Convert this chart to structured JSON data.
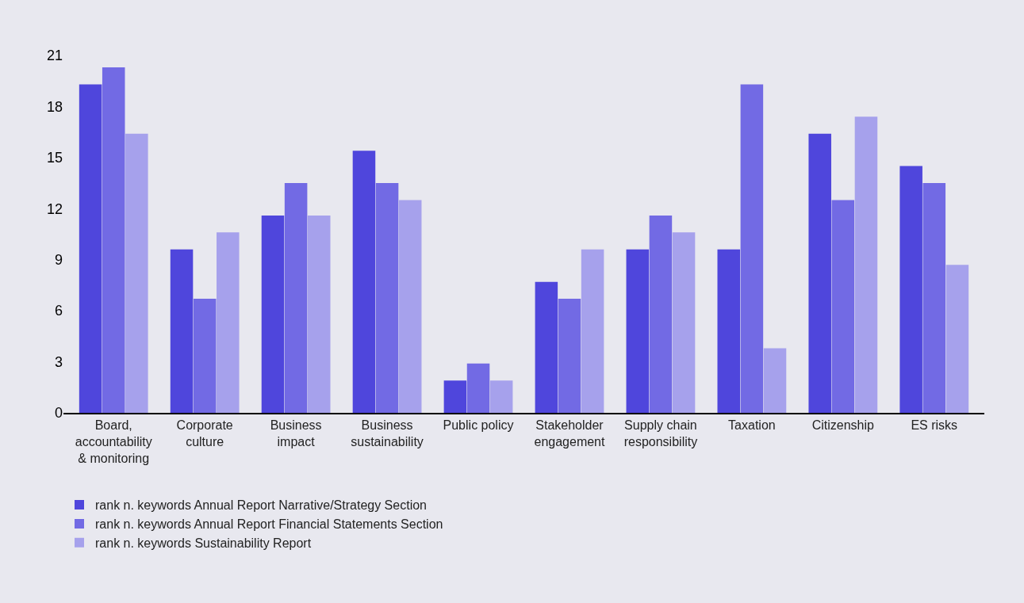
{
  "chart_data": {
    "type": "bar",
    "categories": [
      "Board, accountability & monitoring",
      "Corporate culture",
      "Business impact",
      "Business sustainability",
      "Public policy",
      "Stakeholder engagement",
      "Supply chain responsibility",
      "Taxation",
      "Citizenship",
      "ES risks"
    ],
    "series": [
      {
        "name": "rank n. keywords Annual Report Narrative/Strategy Section",
        "color": "#4f46dc",
        "values": [
          19.3,
          9.6,
          11.6,
          15.4,
          1.9,
          7.7,
          9.6,
          9.6,
          16.4,
          14.5
        ]
      },
      {
        "name": "rank n. keywords Annual Report Financial Statements Section",
        "color": "#726ae4",
        "values": [
          20.3,
          6.7,
          13.5,
          13.5,
          2.9,
          6.7,
          11.6,
          19.3,
          12.5,
          13.5
        ]
      },
      {
        "name": "rank n. keywords Sustainability Report",
        "color": "#a6a1ec",
        "values": [
          16.4,
          10.6,
          11.6,
          12.5,
          1.9,
          9.6,
          10.6,
          3.8,
          17.4,
          8.7
        ]
      }
    ],
    "ylim": [
      0,
      21
    ],
    "yticks": [
      0,
      3,
      6,
      9,
      12,
      15,
      18,
      21
    ],
    "grid": false,
    "legend": "bottom"
  }
}
